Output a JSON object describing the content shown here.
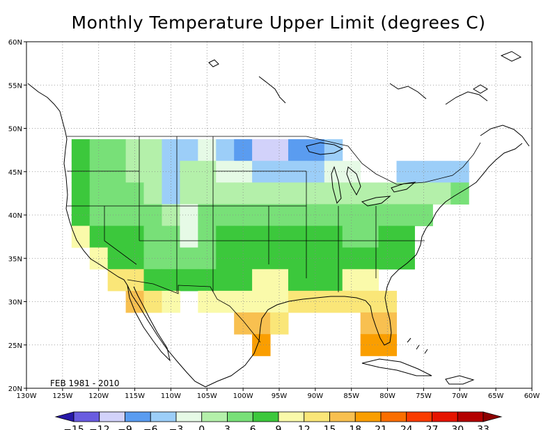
{
  "title": "Monthly Temperature Upper Limit (degrees C)",
  "period_label": "FEB 1981 - 2010",
  "map": {
    "lon_range": [
      -130,
      -60
    ],
    "lat_range": [
      20,
      60
    ],
    "lon_ticks": [
      "130W",
      "125W",
      "120W",
      "115W",
      "110W",
      "105W",
      "100W",
      "95W",
      "90W",
      "85W",
      "80W",
      "75W",
      "70W",
      "65W",
      "60W"
    ],
    "lat_ticks": [
      "20N",
      "25N",
      "30N",
      "35N",
      "40N",
      "45N",
      "50N",
      "55N",
      "60N"
    ],
    "grid_cell_deg": 2.5
  },
  "colorbar": {
    "labels": [
      "-15",
      "-12",
      "-9",
      "-6",
      "-3",
      "0",
      "3",
      "6",
      "9",
      "12",
      "15",
      "18",
      "21",
      "24",
      "27",
      "30",
      "33"
    ],
    "colors": [
      "#2818a8",
      "#6a5ce0",
      "#d2d2fa",
      "#5a9cf0",
      "#9ccef8",
      "#e6fae6",
      "#b4f0aa",
      "#78e078",
      "#3cc83c",
      "#fafaaa",
      "#fae678",
      "#f8c050",
      "#fa9e00",
      "#fa6e00",
      "#fa3c00",
      "#e61400",
      "#b40000",
      "#8c0000"
    ]
  },
  "grid_cells": [
    {
      "lat": 47.5,
      "lon": -122.5,
      "value": 6
    },
    {
      "lat": 47.5,
      "lon": -120,
      "value": 4
    },
    {
      "lat": 47.5,
      "lon": -117.5,
      "value": 3
    },
    {
      "lat": 47.5,
      "lon": -115,
      "value": 2
    },
    {
      "lat": 47.5,
      "lon": -112.5,
      "value": 1
    },
    {
      "lat": 47.5,
      "lon": -110,
      "value": -4
    },
    {
      "lat": 47.5,
      "lon": -107.5,
      "value": -4
    },
    {
      "lat": 47.5,
      "lon": -105,
      "value": -3
    },
    {
      "lat": 47.5,
      "lon": -102.5,
      "value": -6
    },
    {
      "lat": 47.5,
      "lon": -100,
      "value": -7
    },
    {
      "lat": 47.5,
      "lon": -97.5,
      "value": -10
    },
    {
      "lat": 47.5,
      "lon": -95,
      "value": -10
    },
    {
      "lat": 47.5,
      "lon": -92.5,
      "value": -7
    },
    {
      "lat": 47.5,
      "lon": -90,
      "value": -7
    },
    {
      "lat": 47.5,
      "lon": -87.5,
      "value": -4
    },
    {
      "lat": 45,
      "lon": -122.5,
      "value": 7
    },
    {
      "lat": 45,
      "lon": -120,
      "value": 4
    },
    {
      "lat": 45,
      "lon": -117.5,
      "value": 4
    },
    {
      "lat": 45,
      "lon": -115,
      "value": 1
    },
    {
      "lat": 45,
      "lon": -112.5,
      "value": 1
    },
    {
      "lat": 45,
      "lon": -110,
      "value": -4
    },
    {
      "lat": 45,
      "lon": -107.5,
      "value": 1
    },
    {
      "lat": 45,
      "lon": -105,
      "value": 1
    },
    {
      "lat": 45,
      "lon": -102.5,
      "value": -1
    },
    {
      "lat": 45,
      "lon": -100,
      "value": -2
    },
    {
      "lat": 45,
      "lon": -97.5,
      "value": -4
    },
    {
      "lat": 45,
      "lon": -95,
      "value": -5
    },
    {
      "lat": 45,
      "lon": -92.5,
      "value": -5
    },
    {
      "lat": 45,
      "lon": -90,
      "value": -4
    },
    {
      "lat": 45,
      "lon": -87.5,
      "value": -2
    },
    {
      "lat": 45,
      "lon": -85,
      "value": -2
    },
    {
      "lat": 45,
      "lon": -77.5,
      "value": -4
    },
    {
      "lat": 45,
      "lon": -75,
      "value": -6
    },
    {
      "lat": 45,
      "lon": -72.5,
      "value": -5
    },
    {
      "lat": 45,
      "lon": -70,
      "value": -5
    },
    {
      "lat": 42.5,
      "lon": -122.5,
      "value": 7
    },
    {
      "lat": 42.5,
      "lon": -120,
      "value": 4
    },
    {
      "lat": 42.5,
      "lon": -117.5,
      "value": 4
    },
    {
      "lat": 42.5,
      "lon": -115,
      "value": 3
    },
    {
      "lat": 42.5,
      "lon": -112.5,
      "value": 2
    },
    {
      "lat": 42.5,
      "lon": -110,
      "value": -4
    },
    {
      "lat": 42.5,
      "lon": -107.5,
      "value": 2
    },
    {
      "lat": 42.5,
      "lon": -105,
      "value": 2
    },
    {
      "lat": 42.5,
      "lon": -102.5,
      "value": 2
    },
    {
      "lat": 42.5,
      "lon": -100,
      "value": 2
    },
    {
      "lat": 42.5,
      "lon": -97.5,
      "value": 1
    },
    {
      "lat": 42.5,
      "lon": -95,
      "value": 1
    },
    {
      "lat": 42.5,
      "lon": -92.5,
      "value": 1
    },
    {
      "lat": 42.5,
      "lon": -90,
      "value": 1
    },
    {
      "lat": 42.5,
      "lon": -87.5,
      "value": 1
    },
    {
      "lat": 42.5,
      "lon": -85,
      "value": 1
    },
    {
      "lat": 42.5,
      "lon": -82.5,
      "value": 1
    },
    {
      "lat": 42.5,
      "lon": -80,
      "value": 1
    },
    {
      "lat": 42.5,
      "lon": -77.5,
      "value": 1
    },
    {
      "lat": 42.5,
      "lon": -75,
      "value": 2
    },
    {
      "lat": 42.5,
      "lon": -72.5,
      "value": 2
    },
    {
      "lat": 42.5,
      "lon": -70,
      "value": 4
    },
    {
      "lat": 40,
      "lon": -122.5,
      "value": 7
    },
    {
      "lat": 40,
      "lon": -120,
      "value": 5
    },
    {
      "lat": 40,
      "lon": -117.5,
      "value": 4
    },
    {
      "lat": 40,
      "lon": -115,
      "value": 4
    },
    {
      "lat": 40,
      "lon": -112.5,
      "value": 3
    },
    {
      "lat": 40,
      "lon": -110,
      "value": 1
    },
    {
      "lat": 40,
      "lon": -107.5,
      "value": -3
    },
    {
      "lat": 40,
      "lon": -105,
      "value": 3
    },
    {
      "lat": 40,
      "lon": -102.5,
      "value": 4
    },
    {
      "lat": 40,
      "lon": -100,
      "value": 4
    },
    {
      "lat": 40,
      "lon": -97.5,
      "value": 4
    },
    {
      "lat": 40,
      "lon": -95,
      "value": 4
    },
    {
      "lat": 40,
      "lon": -92.5,
      "value": 4
    },
    {
      "lat": 40,
      "lon": -90,
      "value": 4
    },
    {
      "lat": 40,
      "lon": -87.5,
      "value": 4
    },
    {
      "lat": 40,
      "lon": -85,
      "value": 4
    },
    {
      "lat": 40,
      "lon": -82.5,
      "value": 5
    },
    {
      "lat": 40,
      "lon": -80,
      "value": 4
    },
    {
      "lat": 40,
      "lon": -77.5,
      "value": 5
    },
    {
      "lat": 40,
      "lon": -75,
      "value": 5
    },
    {
      "lat": 37.5,
      "lon": -122.5,
      "value": 10
    },
    {
      "lat": 37.5,
      "lon": -120,
      "value": 7
    },
    {
      "lat": 37.5,
      "lon": -117.5,
      "value": 7
    },
    {
      "lat": 37.5,
      "lon": -115,
      "value": 7
    },
    {
      "lat": 37.5,
      "lon": -112.5,
      "value": 4
    },
    {
      "lat": 37.5,
      "lon": -110,
      "value": 3
    },
    {
      "lat": 37.5,
      "lon": -107.5,
      "value": -2
    },
    {
      "lat": 37.5,
      "lon": -105,
      "value": 4
    },
    {
      "lat": 37.5,
      "lon": -102.5,
      "value": 7
    },
    {
      "lat": 37.5,
      "lon": -100,
      "value": 7
    },
    {
      "lat": 37.5,
      "lon": -97.5,
      "value": 7
    },
    {
      "lat": 37.5,
      "lon": -95,
      "value": 7
    },
    {
      "lat": 37.5,
      "lon": -92.5,
      "value": 7
    },
    {
      "lat": 37.5,
      "lon": -90,
      "value": 7
    },
    {
      "lat": 37.5,
      "lon": -87.5,
      "value": 7
    },
    {
      "lat": 37.5,
      "lon": -85,
      "value": 5
    },
    {
      "lat": 37.5,
      "lon": -82.5,
      "value": 4
    },
    {
      "lat": 37.5,
      "lon": -80,
      "value": 7
    },
    {
      "lat": 37.5,
      "lon": -77.5,
      "value": 7
    },
    {
      "lat": 35,
      "lon": -120,
      "value": 10
    },
    {
      "lat": 35,
      "lon": -117.5,
      "value": 8
    },
    {
      "lat": 35,
      "lon": -115,
      "value": 7
    },
    {
      "lat": 35,
      "lon": -112.5,
      "value": 5
    },
    {
      "lat": 35,
      "lon": -110,
      "value": 4
    },
    {
      "lat": 35,
      "lon": -107.5,
      "value": 4
    },
    {
      "lat": 35,
      "lon": -105,
      "value": 4
    },
    {
      "lat": 35,
      "lon": -102.5,
      "value": 7
    },
    {
      "lat": 35,
      "lon": -100,
      "value": 7
    },
    {
      "lat": 35,
      "lon": -97.5,
      "value": 8
    },
    {
      "lat": 35,
      "lon": -95,
      "value": 8
    },
    {
      "lat": 35,
      "lon": -92.5,
      "value": 8
    },
    {
      "lat": 35,
      "lon": -90,
      "value": 8
    },
    {
      "lat": 35,
      "lon": -87.5,
      "value": 8
    },
    {
      "lat": 35,
      "lon": -85,
      "value": 7
    },
    {
      "lat": 35,
      "lon": -82.5,
      "value": 7
    },
    {
      "lat": 35,
      "lon": -80,
      "value": 7
    },
    {
      "lat": 35,
      "lon": -77.5,
      "value": 7
    },
    {
      "lat": 32.5,
      "lon": -117.5,
      "value": 13
    },
    {
      "lat": 32.5,
      "lon": -115,
      "value": 13
    },
    {
      "lat": 32.5,
      "lon": -112.5,
      "value": 7
    },
    {
      "lat": 32.5,
      "lon": -110,
      "value": 7
    },
    {
      "lat": 32.5,
      "lon": -107.5,
      "value": 7
    },
    {
      "lat": 32.5,
      "lon": -105,
      "value": 7
    },
    {
      "lat": 32.5,
      "lon": -102.5,
      "value": 7
    },
    {
      "lat": 32.5,
      "lon": -100,
      "value": 8
    },
    {
      "lat": 32.5,
      "lon": -97.5,
      "value": 10
    },
    {
      "lat": 32.5,
      "lon": -95,
      "value": 10
    },
    {
      "lat": 32.5,
      "lon": -92.5,
      "value": 8
    },
    {
      "lat": 32.5,
      "lon": -90,
      "value": 8
    },
    {
      "lat": 32.5,
      "lon": -87.5,
      "value": 8
    },
    {
      "lat": 32.5,
      "lon": -85,
      "value": 10
    },
    {
      "lat": 32.5,
      "lon": -82.5,
      "value": 11
    },
    {
      "lat": 30,
      "lon": -115,
      "value": 17
    },
    {
      "lat": 30,
      "lon": -112.5,
      "value": 13
    },
    {
      "lat": 30,
      "lon": -110,
      "value": 10
    },
    {
      "lat": 30,
      "lon": -105,
      "value": 10
    },
    {
      "lat": 30,
      "lon": -102.5,
      "value": 10
    },
    {
      "lat": 30,
      "lon": -100,
      "value": 10
    },
    {
      "lat": 30,
      "lon": -97.5,
      "value": 11
    },
    {
      "lat": 30,
      "lon": -95,
      "value": 11
    },
    {
      "lat": 30,
      "lon": -92.5,
      "value": 13
    },
    {
      "lat": 30,
      "lon": -90,
      "value": 13
    },
    {
      "lat": 30,
      "lon": -87.5,
      "value": 13
    },
    {
      "lat": 30,
      "lon": -85,
      "value": 13
    },
    {
      "lat": 30,
      "lon": -82.5,
      "value": 13
    },
    {
      "lat": 30,
      "lon": -80,
      "value": 14
    },
    {
      "lat": 27.5,
      "lon": -100,
      "value": 16
    },
    {
      "lat": 27.5,
      "lon": -97.5,
      "value": 16
    },
    {
      "lat": 27.5,
      "lon": -95,
      "value": 14
    },
    {
      "lat": 27.5,
      "lon": -82.5,
      "value": 17
    },
    {
      "lat": 27.5,
      "lon": -80,
      "value": 17
    },
    {
      "lat": 25,
      "lon": -97.5,
      "value": 19
    },
    {
      "lat": 25,
      "lon": -82.5,
      "value": 19
    },
    {
      "lat": 25,
      "lon": -80,
      "value": 19
    }
  ]
}
